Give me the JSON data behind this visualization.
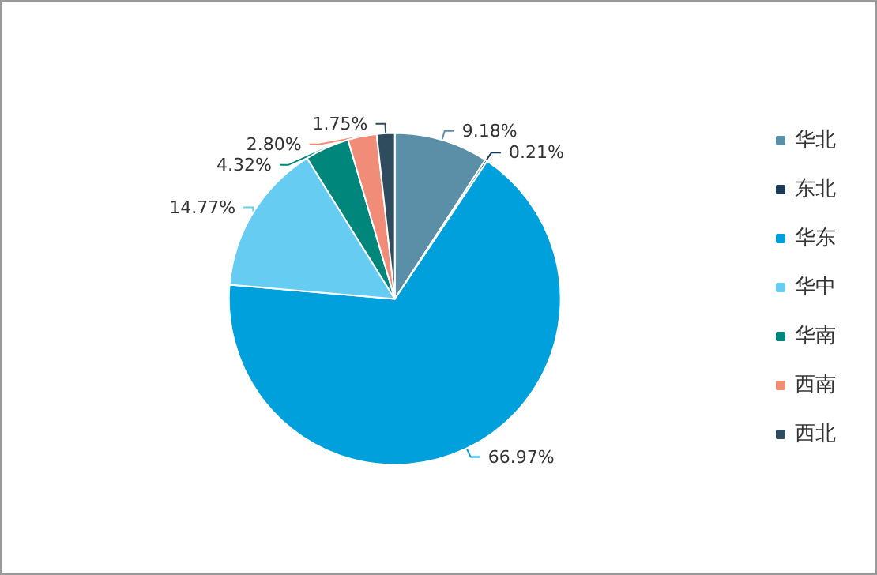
{
  "chart_data": {
    "type": "pie",
    "categories": [
      "华北",
      "东北",
      "华东",
      "华中",
      "华南",
      "西南",
      "西北"
    ],
    "values": [
      9.18,
      0.21,
      66.97,
      14.77,
      4.32,
      2.8,
      1.75
    ],
    "value_labels": [
      "9.18%",
      "0.21%",
      "66.97%",
      "14.77%",
      "4.32%",
      "2.80%",
      "1.75%"
    ],
    "colors": [
      "#5b8fa8",
      "#1a3a55",
      "#00a0dc",
      "#66ccf2",
      "#00867a",
      "#f08c78",
      "#2f4b5e"
    ],
    "legend": "right"
  }
}
